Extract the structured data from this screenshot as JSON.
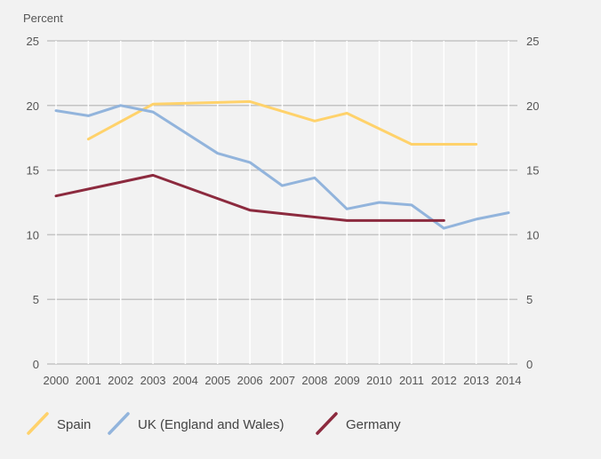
{
  "chart_data": {
    "type": "line",
    "ylabel": "Percent",
    "xlabel": "",
    "title": "",
    "ylim": [
      0,
      25
    ],
    "yticks": [
      0,
      5,
      10,
      15,
      20,
      25
    ],
    "x": [
      2000,
      2001,
      2002,
      2003,
      2004,
      2005,
      2006,
      2007,
      2008,
      2009,
      2010,
      2011,
      2012,
      2013,
      2014
    ],
    "legend_position": "bottom",
    "grid": true,
    "series": [
      {
        "name": "Spain",
        "color": "#ffd26b",
        "x": [
          2001,
          2003,
          2006,
          2008,
          2009,
          2011,
          2012,
          2013
        ],
        "values": [
          17.4,
          20.1,
          20.3,
          18.8,
          19.4,
          17.0,
          17.0,
          17.0
        ]
      },
      {
        "name": "UK (England and Wales)",
        "color": "#92b4dc",
        "x": [
          2000,
          2001,
          2002,
          2003,
          2005,
          2006,
          2007,
          2008,
          2009,
          2010,
          2011,
          2012,
          2013,
          2014
        ],
        "values": [
          19.6,
          19.2,
          20.0,
          19.5,
          16.3,
          15.6,
          13.8,
          14.4,
          12.0,
          12.5,
          12.3,
          10.5,
          11.2,
          11.7
        ]
      },
      {
        "name": "Germany",
        "color": "#8c2a3e",
        "x": [
          2000,
          2003,
          2006,
          2009,
          2010,
          2011,
          2012
        ],
        "values": [
          13.0,
          14.6,
          11.9,
          11.1,
          11.1,
          11.1,
          11.1
        ]
      }
    ]
  }
}
